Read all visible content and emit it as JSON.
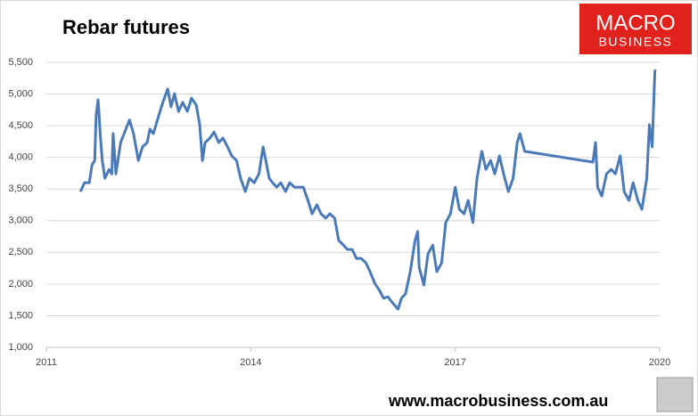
{
  "chart_data": {
    "type": "line",
    "title": "Rebar futures",
    "logo": {
      "line1": "MACRO",
      "line2": "BUSINESS"
    },
    "footer": "www.macrobusiness.com.au",
    "xlim": [
      2011,
      2020
    ],
    "xticks": [
      2011,
      2014,
      2017,
      2020
    ],
    "ylim": [
      1000,
      5500
    ],
    "yticks": [
      {
        "value": 1000,
        "label": "1,000"
      },
      {
        "value": 1500,
        "label": "1,500"
      },
      {
        "value": 2000,
        "label": "2,000"
      },
      {
        "value": 2500,
        "label": "2,500"
      },
      {
        "value": 3000,
        "label": "3,000"
      },
      {
        "value": 3500,
        "label": "3,500"
      },
      {
        "value": 4000,
        "label": "4,000"
      },
      {
        "value": 4500,
        "label": "4,500"
      },
      {
        "value": 5000,
        "label": "5,000"
      },
      {
        "value": 5500,
        "label": "5,500"
      }
    ],
    "grid": true,
    "color": "#4a7ab8",
    "x": [
      2011.5,
      2011.56,
      2011.63,
      2011.67,
      2011.71,
      2011.73,
      2011.76,
      2011.79,
      2011.82,
      2011.86,
      2011.92,
      2011.96,
      2011.98,
      2012.02,
      2012.09,
      2012.15,
      2012.22,
      2012.28,
      2012.35,
      2012.41,
      2012.48,
      2012.52,
      2012.57,
      2012.65,
      2012.71,
      2012.78,
      2012.83,
      2012.88,
      2012.94,
      2013.0,
      2013.07,
      2013.13,
      2013.2,
      2013.25,
      2013.29,
      2013.33,
      2013.4,
      2013.46,
      2013.53,
      2013.59,
      2013.66,
      2013.72,
      2013.79,
      2013.85,
      2013.92,
      2013.98,
      2014.05,
      2014.12,
      2014.18,
      2014.22,
      2014.27,
      2014.32,
      2014.38,
      2014.44,
      2014.51,
      2014.57,
      2014.64,
      2014.77,
      2014.84,
      2014.9,
      2014.97,
      2015.03,
      2015.1,
      2015.16,
      2015.23,
      2015.29,
      2015.36,
      2015.42,
      2015.49,
      2015.55,
      2015.62,
      2015.69,
      2015.75,
      2015.82,
      2015.88,
      2015.95,
      2016.01,
      2016.08,
      2016.16,
      2016.21,
      2016.27,
      2016.34,
      2016.41,
      2016.45,
      2016.47,
      2016.54,
      2016.6,
      2016.67,
      2016.73,
      2016.8,
      2016.86,
      2016.93,
      2017.0,
      2017.06,
      2017.13,
      2017.19,
      2017.26,
      2017.32,
      2017.39,
      2017.45,
      2017.52,
      2017.58,
      2017.65,
      2017.71,
      2017.78,
      2017.85,
      2017.91,
      2017.95,
      2018.02,
      2019.02,
      2019.06,
      2019.09,
      2019.15,
      2019.22,
      2019.29,
      2019.35,
      2019.42,
      2019.48,
      2019.55,
      2019.61,
      2019.68,
      2019.74,
      2019.81,
      2019.85,
      2019.89,
      2019.93,
      2019.94
    ],
    "values": [
      3460,
      3600,
      3600,
      3880,
      3950,
      4660,
      4910,
      4375,
      3950,
      3670,
      3810,
      3740,
      4375,
      3740,
      4235,
      4400,
      4590,
      4375,
      3950,
      4165,
      4235,
      4445,
      4375,
      4660,
      4870,
      5080,
      4800,
      5005,
      4725,
      4870,
      4725,
      4935,
      4825,
      4515,
      3950,
      4235,
      4305,
      4400,
      4235,
      4305,
      4165,
      4025,
      3950,
      3670,
      3460,
      3670,
      3600,
      3740,
      4165,
      3950,
      3670,
      3600,
      3530,
      3600,
      3460,
      3600,
      3530,
      3530,
      3320,
      3110,
      3250,
      3110,
      3040,
      3110,
      3040,
      2690,
      2615,
      2545,
      2545,
      2405,
      2405,
      2335,
      2195,
      2010,
      1915,
      1775,
      1800,
      1705,
      1605,
      1775,
      1845,
      2195,
      2690,
      2830,
      2265,
      1985,
      2475,
      2615,
      2195,
      2335,
      2970,
      3110,
      3530,
      3180,
      3110,
      3320,
      2970,
      3670,
      4095,
      3810,
      3950,
      3740,
      4025,
      3740,
      3460,
      3670,
      4235,
      4375,
      4095,
      3925,
      4235,
      3530,
      3390,
      3740,
      3810,
      3740,
      4025,
      3460,
      3320,
      3600,
      3320,
      3180,
      3670,
      4515,
      4165,
      5360,
      5385
    ]
  }
}
